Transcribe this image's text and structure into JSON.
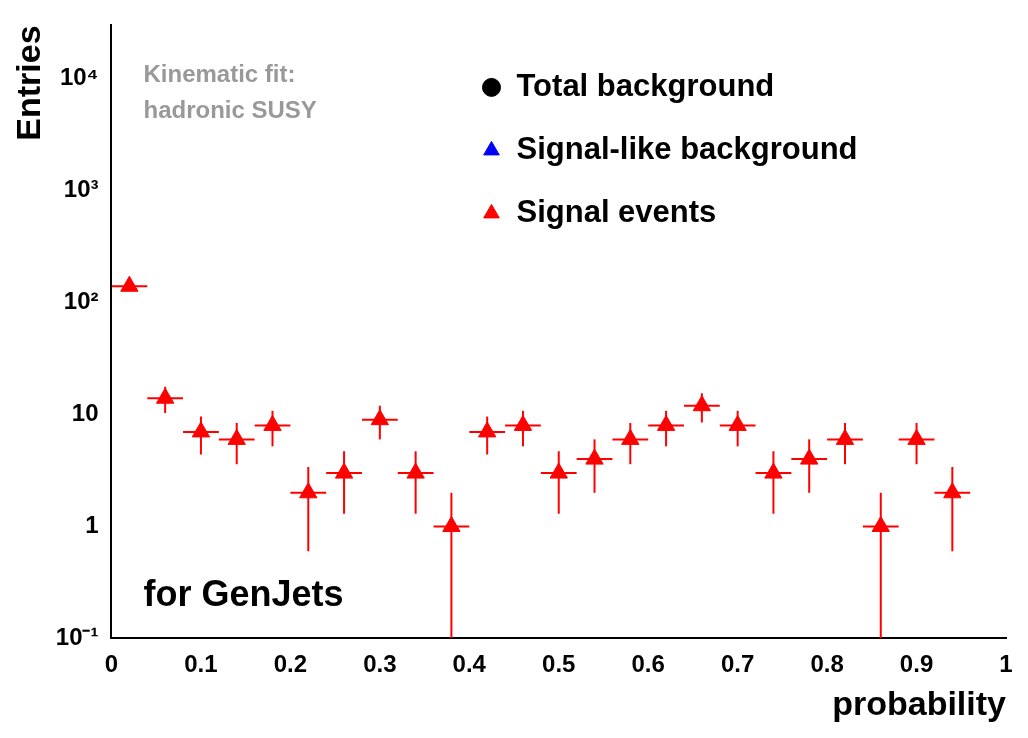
{
  "chart_data": {
    "type": "scatter",
    "xlabel": "probability",
    "ylabel": "Entries",
    "x": [
      0.02,
      0.06,
      0.1,
      0.14,
      0.18,
      0.22,
      0.26,
      0.3,
      0.34,
      0.38,
      0.42,
      0.46,
      0.5,
      0.54,
      0.58,
      0.62,
      0.66,
      0.7,
      0.74,
      0.78,
      0.82,
      0.86,
      0.9,
      0.94
    ],
    "series": [
      {
        "name": "Total background",
        "color": "#000000",
        "marker": "circle",
        "values": [
          null,
          null,
          null,
          null,
          null,
          null,
          null,
          null,
          null,
          null,
          null,
          null,
          null,
          null,
          null,
          null,
          null,
          null,
          null,
          null,
          null,
          null,
          null,
          null
        ]
      },
      {
        "name": "Signal-like background",
        "color": "#0000ff",
        "marker": "triangle",
        "values": [
          null,
          null,
          null,
          null,
          null,
          null,
          null,
          null,
          null,
          null,
          null,
          null,
          null,
          null,
          null,
          null,
          null,
          null,
          null,
          null,
          null,
          null,
          null,
          null
        ]
      },
      {
        "name": "Signal events",
        "color": "#ff0000",
        "marker": "triangle",
        "values": [
          140,
          14,
          7,
          6,
          8,
          2,
          3,
          9,
          3,
          1,
          7,
          8,
          3,
          4,
          6,
          8,
          12,
          8,
          3,
          4,
          6,
          1,
          6,
          2
        ],
        "errors": [
          12,
          3.7,
          2.6,
          2.4,
          2.8,
          1.4,
          1.7,
          3,
          1.7,
          [
            0.1,
            2
          ],
          2.6,
          2.8,
          1.7,
          2,
          2.4,
          2.8,
          3.5,
          2.8,
          1.7,
          2,
          2.4,
          [
            0.1,
            2
          ],
          2.4,
          1.4
        ],
        "xerrors": [
          0.02,
          0.02,
          0.02,
          0.02,
          0.02,
          0.02,
          0.02,
          0.02,
          0.02,
          0.02,
          0.02,
          0.02,
          0.02,
          0.02,
          0.02,
          0.02,
          0.02,
          0.02,
          0.02,
          0.02,
          0.02,
          0.02,
          0.02,
          0.02
        ]
      }
    ],
    "log": "y",
    "xlim": [
      0,
      1
    ],
    "ylim": [
      0.1,
      30000
    ],
    "xticks": [
      0,
      0.1,
      0.2,
      0.3,
      0.4,
      0.5,
      0.6,
      0.7,
      0.8,
      0.9,
      1
    ],
    "yticks": [
      {
        "value": 0.1,
        "label": "10⁻¹"
      },
      1,
      10,
      {
        "value": 100,
        "label": "10²"
      },
      {
        "value": 1000,
        "label": "10³"
      },
      {
        "value": 10000,
        "label": "10⁴"
      }
    ],
    "legend": "top right",
    "grid": false,
    "annotations": [
      "Kinematic fit:",
      "hadronic SUSY",
      "for GenJets"
    ]
  }
}
